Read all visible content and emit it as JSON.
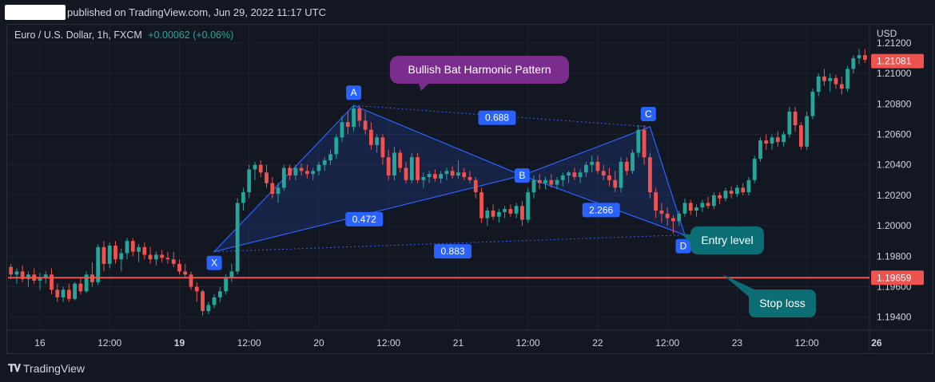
{
  "header": {
    "published": "published on TradingView.com, Jun 29, 2022 11:17 UTC"
  },
  "symbol": {
    "name": "Euro / U.S. Dollar, 1h, FXCM",
    "change": "+0.00062 (+0.06%)"
  },
  "footer": {
    "brand": "TradingView",
    "logo": "tradingview-logo"
  },
  "colors": {
    "background": "#131722",
    "up": "#26a69a",
    "down": "#ef5350",
    "pattern": "#2962ff",
    "callout": "#7b2d8e",
    "note": "#0b6e75"
  },
  "chart_data": {
    "type": "candlestick",
    "currency_label": "USD",
    "y_ticks": [
      "1.21200",
      "1.21000",
      "1.20800",
      "1.20600",
      "1.20400",
      "1.20200",
      "1.20000",
      "1.19800",
      "1.19600",
      "1.19400"
    ],
    "ylim": [
      1.1932,
      1.2132
    ],
    "x_ticks": [
      {
        "label": "16",
        "bold": false
      },
      {
        "label": "12:00",
        "bold": false
      },
      {
        "label": "19",
        "bold": true
      },
      {
        "label": "12:00",
        "bold": false
      },
      {
        "label": "20",
        "bold": false
      },
      {
        "label": "12:00",
        "bold": false
      },
      {
        "label": "21",
        "bold": false
      },
      {
        "label": "12:00",
        "bold": false
      },
      {
        "label": "22",
        "bold": false
      },
      {
        "label": "12:00",
        "bold": false
      },
      {
        "label": "23",
        "bold": false
      },
      {
        "label": "12:00",
        "bold": false
      },
      {
        "label": "26",
        "bold": true
      }
    ],
    "candles": [
      [
        1.1973,
        1.1975,
        1.1965,
        1.1968
      ],
      [
        1.1968,
        1.1972,
        1.1962,
        1.197
      ],
      [
        1.197,
        1.1974,
        1.1963,
        1.1965
      ],
      [
        1.1965,
        1.197,
        1.196,
        1.1968
      ],
      [
        1.1968,
        1.1972,
        1.1962,
        1.1964
      ],
      [
        1.1964,
        1.1969,
        1.1958,
        1.1966
      ],
      [
        1.1966,
        1.197,
        1.1962,
        1.1968
      ],
      [
        1.1968,
        1.1972,
        1.1955,
        1.1958
      ],
      [
        1.1958,
        1.1962,
        1.195,
        1.1953
      ],
      [
        1.1953,
        1.196,
        1.195,
        1.1958
      ],
      [
        1.1958,
        1.1962,
        1.195,
        1.1952
      ],
      [
        1.1952,
        1.1963,
        1.1951,
        1.1962
      ],
      [
        1.1962,
        1.1966,
        1.1955,
        1.1957
      ],
      [
        1.1957,
        1.197,
        1.1956,
        1.1968
      ],
      [
        1.1968,
        1.1976,
        1.196,
        1.1963
      ],
      [
        1.1963,
        1.1988,
        1.1961,
        1.1986
      ],
      [
        1.1986,
        1.199,
        1.197,
        1.1975
      ],
      [
        1.1975,
        1.1989,
        1.1972,
        1.1987
      ],
      [
        1.1987,
        1.199,
        1.1975,
        1.1978
      ],
      [
        1.1978,
        1.1985,
        1.197,
        1.1982
      ],
      [
        1.1982,
        1.1992,
        1.1978,
        1.199
      ],
      [
        1.199,
        1.1992,
        1.198,
        1.1983
      ],
      [
        1.1983,
        1.1988,
        1.1976,
        1.1986
      ],
      [
        1.1986,
        1.1989,
        1.1978,
        1.1981
      ],
      [
        1.1981,
        1.1986,
        1.1975,
        1.1978
      ],
      [
        1.1978,
        1.1983,
        1.1974,
        1.1981
      ],
      [
        1.1981,
        1.1984,
        1.1976,
        1.1979
      ],
      [
        1.1979,
        1.1983,
        1.1975,
        1.1978
      ],
      [
        1.1978,
        1.1983,
        1.1973,
        1.1975
      ],
      [
        1.1975,
        1.1978,
        1.1968,
        1.197
      ],
      [
        1.197,
        1.1975,
        1.1966,
        1.1968
      ],
      [
        1.1968,
        1.197,
        1.1958,
        1.196
      ],
      [
        1.196,
        1.1963,
        1.195,
        1.1957
      ],
      [
        1.1957,
        1.1958,
        1.1941,
        1.1944
      ],
      [
        1.1944,
        1.195,
        1.1942,
        1.1948
      ],
      [
        1.1948,
        1.1955,
        1.1946,
        1.1953
      ],
      [
        1.1953,
        1.196,
        1.195,
        1.1957
      ],
      [
        1.1957,
        1.1968,
        1.1955,
        1.1966
      ],
      [
        1.1966,
        1.1975,
        1.1963,
        1.197
      ],
      [
        1.197,
        1.2018,
        1.1968,
        1.2015
      ],
      [
        1.2015,
        1.2025,
        1.201,
        1.2022
      ],
      [
        1.2022,
        1.204,
        1.2018,
        1.2037
      ],
      [
        1.2037,
        1.2042,
        1.203,
        1.204
      ],
      [
        1.204,
        1.2043,
        1.2032,
        1.2035
      ],
      [
        1.2035,
        1.204,
        1.2025,
        1.2028
      ],
      [
        1.2028,
        1.2032,
        1.2018,
        1.2021
      ],
      [
        1.2021,
        1.2028,
        1.2015,
        1.2025
      ],
      [
        1.2025,
        1.204,
        1.2023,
        1.2038
      ],
      [
        1.2038,
        1.204,
        1.203,
        1.2033
      ],
      [
        1.2033,
        1.204,
        1.203,
        1.2038
      ],
      [
        1.2038,
        1.2041,
        1.2033,
        1.2036
      ],
      [
        1.2036,
        1.204,
        1.2031,
        1.2034
      ],
      [
        1.2034,
        1.2038,
        1.203,
        1.2036
      ],
      [
        1.2036,
        1.2042,
        1.2033,
        1.204
      ],
      [
        1.204,
        1.2045,
        1.2036,
        1.2043
      ],
      [
        1.2043,
        1.205,
        1.204,
        1.2047
      ],
      [
        1.2047,
        1.206,
        1.2044,
        1.2058
      ],
      [
        1.2058,
        1.2072,
        1.2055,
        1.2068
      ],
      [
        1.2068,
        1.2075,
        1.206,
        1.2065
      ],
      [
        1.2065,
        1.2079,
        1.2062,
        1.2077
      ],
      [
        1.2077,
        1.2079,
        1.2065,
        1.2069
      ],
      [
        1.2069,
        1.2075,
        1.206,
        1.2063
      ],
      [
        1.2063,
        1.2068,
        1.205,
        1.2053
      ],
      [
        1.2053,
        1.206,
        1.2048,
        1.2058
      ],
      [
        1.2058,
        1.206,
        1.204,
        1.2045
      ],
      [
        1.2045,
        1.205,
        1.203,
        1.2033
      ],
      [
        1.2033,
        1.2052,
        1.203,
        1.2048
      ],
      [
        1.2048,
        1.205,
        1.2035,
        1.2038
      ],
      [
        1.2038,
        1.2042,
        1.2028,
        1.203
      ],
      [
        1.203,
        1.2048,
        1.2028,
        1.2045
      ],
      [
        1.2045,
        1.2048,
        1.2028,
        1.203
      ],
      [
        1.203,
        1.2035,
        1.2025,
        1.2032
      ],
      [
        1.2032,
        1.2036,
        1.2028,
        1.2034
      ],
      [
        1.2034,
        1.2037,
        1.2029,
        1.2031
      ],
      [
        1.2031,
        1.2036,
        1.2028,
        1.2034
      ],
      [
        1.2034,
        1.2038,
        1.203,
        1.2036
      ],
      [
        1.2036,
        1.2039,
        1.2031,
        1.2033
      ],
      [
        1.2033,
        1.2043,
        1.2031,
        1.2035
      ],
      [
        1.2035,
        1.2038,
        1.203,
        1.2032
      ],
      [
        1.2032,
        1.2036,
        1.2028,
        1.203
      ],
      [
        1.203,
        1.2032,
        1.2018,
        1.2022
      ],
      [
        1.2022,
        1.2025,
        1.2002,
        1.2005
      ],
      [
        1.2005,
        1.2012,
        1.2,
        1.201
      ],
      [
        1.201,
        1.2014,
        1.2004,
        1.2006
      ],
      [
        1.2006,
        1.2011,
        1.2002,
        1.2009
      ],
      [
        1.2009,
        1.2013,
        1.2005,
        1.2011
      ],
      [
        1.2011,
        1.2014,
        1.2006,
        1.2008
      ],
      [
        1.2008,
        1.2015,
        1.2005,
        1.2013
      ],
      [
        1.2013,
        1.2016,
        1.2,
        1.2004
      ],
      [
        1.2004,
        1.2025,
        1.2002,
        1.2022
      ],
      [
        1.2022,
        1.2033,
        1.2018,
        1.203
      ],
      [
        1.203,
        1.2034,
        1.2024,
        1.2028
      ],
      [
        1.2028,
        1.2032,
        1.2024,
        1.203
      ],
      [
        1.203,
        1.2034,
        1.2025,
        1.2027
      ],
      [
        1.2027,
        1.2032,
        1.2024,
        1.203
      ],
      [
        1.203,
        1.2035,
        1.2026,
        1.2033
      ],
      [
        1.2033,
        1.2036,
        1.2028,
        1.2035
      ],
      [
        1.2035,
        1.2038,
        1.203,
        1.2032
      ],
      [
        1.2032,
        1.2037,
        1.2028,
        1.2035
      ],
      [
        1.2035,
        1.2042,
        1.2032,
        1.204
      ],
      [
        1.204,
        1.2046,
        1.2035,
        1.2042
      ],
      [
        1.2042,
        1.2046,
        1.2034,
        1.2036
      ],
      [
        1.2036,
        1.204,
        1.203,
        1.2033
      ],
      [
        1.2033,
        1.2038,
        1.2026,
        1.203
      ],
      [
        1.203,
        1.2036,
        1.2022,
        1.2025
      ],
      [
        1.2025,
        1.2045,
        1.2022,
        1.2042
      ],
      [
        1.2042,
        1.2045,
        1.2033,
        1.2036
      ],
      [
        1.2036,
        1.205,
        1.2034,
        1.2048
      ],
      [
        1.2048,
        1.2066,
        1.2045,
        1.2063
      ],
      [
        1.2063,
        1.2066,
        1.204,
        1.2045
      ],
      [
        1.2045,
        1.2048,
        1.2018,
        1.2022
      ],
      [
        1.2022,
        1.2025,
        1.2005,
        1.201
      ],
      [
        1.201,
        1.2015,
        1.2002,
        1.2008
      ],
      [
        1.2008,
        1.2012,
        1.2,
        1.2005
      ],
      [
        1.2005,
        1.2007,
        1.1995,
        1.2003
      ],
      [
        1.2003,
        1.201,
        1.2,
        1.2008
      ],
      [
        1.2008,
        1.2018,
        1.2006,
        1.2015
      ],
      [
        1.2015,
        1.2017,
        1.2007,
        1.201
      ],
      [
        1.201,
        1.2014,
        1.2006,
        1.2012
      ],
      [
        1.2012,
        1.2017,
        1.2009,
        1.2015
      ],
      [
        1.2015,
        1.2019,
        1.2011,
        1.2013
      ],
      [
        1.2013,
        1.2022,
        1.2011,
        1.202
      ],
      [
        1.202,
        1.2022,
        1.2014,
        1.2018
      ],
      [
        1.2018,
        1.2025,
        1.2016,
        1.2023
      ],
      [
        1.2023,
        1.2026,
        1.2018,
        1.2021
      ],
      [
        1.2021,
        1.2027,
        1.2019,
        1.2025
      ],
      [
        1.2025,
        1.2028,
        1.202,
        1.2022
      ],
      [
        1.2022,
        1.2032,
        1.202,
        1.203
      ],
      [
        1.203,
        1.2046,
        1.2028,
        1.2044
      ],
      [
        1.2044,
        1.2058,
        1.2042,
        1.2056
      ],
      [
        1.2056,
        1.206,
        1.205,
        1.2054
      ],
      [
        1.2054,
        1.206,
        1.205,
        1.2058
      ],
      [
        1.2058,
        1.2062,
        1.2052,
        1.2055
      ],
      [
        1.2055,
        1.2062,
        1.2052,
        1.206
      ],
      [
        1.206,
        1.2078,
        1.2058,
        1.2075
      ],
      [
        1.2075,
        1.2078,
        1.2062,
        1.2066
      ],
      [
        1.2066,
        1.2068,
        1.205,
        1.2052
      ],
      [
        1.2052,
        1.2075,
        1.205,
        1.2072
      ],
      [
        1.2072,
        1.209,
        1.207,
        1.2088
      ],
      [
        1.2088,
        1.21,
        1.2085,
        1.2098
      ],
      [
        1.2098,
        1.2103,
        1.2092,
        1.2095
      ],
      [
        1.2095,
        1.21,
        1.2088,
        1.2097
      ],
      [
        1.2097,
        1.2099,
        1.209,
        1.2093
      ],
      [
        1.2093,
        1.2098,
        1.2086,
        1.209
      ],
      [
        1.209,
        1.2105,
        1.2088,
        1.2103
      ],
      [
        1.2103,
        1.2112,
        1.21,
        1.211
      ],
      [
        1.211,
        1.2116,
        1.2106,
        1.2112
      ],
      [
        1.2112,
        1.2116,
        1.2107,
        1.2109
      ]
    ],
    "price_labels": [
      {
        "value": 1.21081,
        "text": "1.21081",
        "color": "#ef5350"
      },
      {
        "value": 1.19659,
        "text": "1.19659",
        "color": "#ef5350"
      }
    ],
    "horizontal_lines": [
      {
        "value": 1.19659,
        "color": "#ef5350"
      }
    ],
    "pattern": {
      "points": [
        {
          "name": "X",
          "index": 35,
          "price": 1.1983
        },
        {
          "name": "A",
          "index": 59,
          "price": 1.2079
        },
        {
          "name": "B",
          "index": 88,
          "price": 1.2033
        },
        {
          "name": "C",
          "index": 110,
          "price": 1.2065
        },
        {
          "name": "D",
          "index": 116,
          "price": 1.1994
        }
      ],
      "ratios": [
        {
          "text": "0.688",
          "from": "A",
          "to": "C"
        },
        {
          "text": "0.472",
          "from": "X",
          "to": "B"
        },
        {
          "text": "2.266",
          "from": "B",
          "to": "D"
        },
        {
          "text": "0.883",
          "from": "X",
          "to": "D"
        }
      ]
    },
    "annotations": {
      "callout": "Bullish Bat Harmonic Pattern",
      "entry": "Entry level",
      "stop": "Stop loss"
    }
  }
}
